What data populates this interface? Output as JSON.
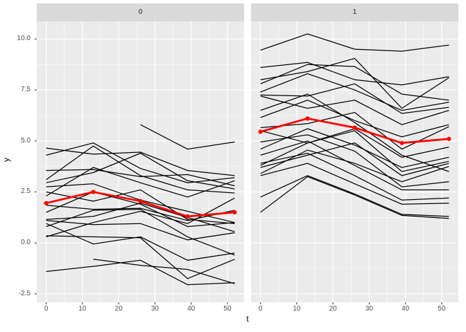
{
  "chart_data": {
    "type": "line",
    "title": "",
    "xlabel": "t",
    "ylabel": "y",
    "x": [
      0,
      13,
      26,
      39,
      52
    ],
    "x_tick_labels": [
      "0",
      "10",
      "20",
      "30",
      "40",
      "50"
    ],
    "x_tick_values": [
      0,
      10,
      20,
      30,
      40,
      50
    ],
    "x_minor": [
      5,
      15,
      25,
      35,
      45
    ],
    "y_tick_labels": [
      "-2.5",
      "0.0",
      "2.5",
      "5.0",
      "7.5",
      "10.0"
    ],
    "y_tick_values": [
      -2.5,
      0.0,
      2.5,
      5.0,
      7.5,
      10.0
    ],
    "y_minor": [
      -1.25,
      1.25,
      3.75,
      6.25,
      8.75
    ],
    "xlim": [
      -2.6,
      54.6
    ],
    "ylim": [
      -2.91,
      10.86
    ],
    "grid": "on",
    "legend": "none",
    "colors": {
      "panel_bg": "#ebebeb",
      "strip_bg": "#d9d9d9",
      "grid": "#ffffff",
      "line": "#000000",
      "mean": "#ff0000",
      "tick": "#333333",
      "tick_text": "#4d4d4d"
    },
    "facets": [
      {
        "label": "0",
        "mean": [
          1.95,
          2.5,
          2.05,
          1.3,
          1.5
        ],
        "series": [
          [
            4.65,
            4.35,
            4.45,
            3.55,
            3.3
          ],
          [
            4.3,
            4.9,
            3.65,
            2.95,
            3.2
          ],
          [
            null,
            null,
            5.8,
            4.6,
            4.95
          ],
          [
            3.55,
            3.6,
            3.25,
            3.35,
            2.8
          ],
          [
            3.1,
            4.75,
            3.3,
            2.6,
            2.45
          ],
          [
            2.95,
            3.45,
            4.4,
            3.05,
            2.65
          ],
          [
            2.75,
            2.9,
            2.1,
            1.55,
            1.0
          ],
          [
            2.5,
            2.05,
            2.6,
            1.15,
            0.95
          ],
          [
            2.3,
            3.7,
            2.95,
            2.25,
            3.05
          ],
          [
            1.85,
            1.65,
            1.7,
            1.1,
            1.6
          ],
          [
            1.5,
            2.5,
            1.9,
            0.8,
            1.0
          ],
          [
            1.15,
            1.3,
            1.95,
            1.25,
            0.55
          ],
          [
            1.1,
            0.9,
            0.95,
            0.15,
            0.5
          ],
          [
            0.8,
            1.6,
            1.65,
            0.3,
            -0.6
          ],
          [
            0.35,
            0.3,
            0.25,
            -1.75,
            -0.8
          ],
          [
            0.3,
            1.0,
            1.55,
            0.95,
            2.2
          ],
          [
            -1.4,
            -1.15,
            -0.85,
            -2.05,
            -1.95
          ],
          [
            null,
            -0.8,
            -1.1,
            -1.3,
            -2.0
          ],
          [
            0.95,
            -0.05,
            0.3,
            -0.85,
            -0.5
          ]
        ]
      },
      {
        "label": "1",
        "mean": [
          5.45,
          6.1,
          5.65,
          4.9,
          5.1
        ],
        "series": [
          [
            9.45,
            10.25,
            9.5,
            9.4,
            9.7
          ],
          [
            8.6,
            8.85,
            8.0,
            7.75,
            8.15
          ],
          [
            8.0,
            8.4,
            9.05,
            6.6,
            8.1
          ],
          [
            7.8,
            8.75,
            8.65,
            7.3,
            7.0
          ],
          [
            7.4,
            8.3,
            7.5,
            6.5,
            6.9
          ],
          [
            7.25,
            7.2,
            7.8,
            6.35,
            6.65
          ],
          [
            7.2,
            6.6,
            7.0,
            5.8,
            6.5
          ],
          [
            6.5,
            7.3,
            5.9,
            4.3,
            3.5
          ],
          [
            6.15,
            7.0,
            6.0,
            5.2,
            5.8
          ],
          [
            5.65,
            5.85,
            6.4,
            4.6,
            5.7
          ],
          [
            5.5,
            4.9,
            5.6,
            4.2,
            4.7
          ],
          [
            4.95,
            5.3,
            4.5,
            2.75,
            3.0
          ],
          [
            4.6,
            5.6,
            4.8,
            3.7,
            4.2
          ],
          [
            4.3,
            5.0,
            3.8,
            2.6,
            2.6
          ],
          [
            3.9,
            4.4,
            3.3,
            2.1,
            2.2
          ],
          [
            3.8,
            4.9,
            5.5,
            3.5,
            4.0
          ],
          [
            3.7,
            4.3,
            4.9,
            3.3,
            3.9
          ],
          [
            3.4,
            4.55,
            3.9,
            3.0,
            3.75
          ],
          [
            3.3,
            3.9,
            2.9,
            1.9,
            1.95
          ],
          [
            2.25,
            3.3,
            2.4,
            1.4,
            1.3
          ],
          [
            1.5,
            3.25,
            2.35,
            1.35,
            1.2
          ]
        ]
      }
    ]
  }
}
